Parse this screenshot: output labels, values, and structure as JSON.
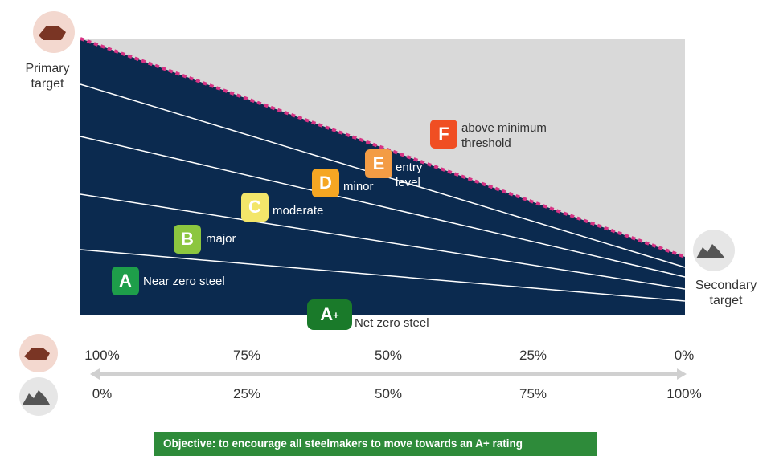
{
  "labels": {
    "primary": "Primary target",
    "secondary": "Secondary target"
  },
  "grades": [
    {
      "letter": "A",
      "label": "Near zero steel"
    },
    {
      "letter": "B",
      "label": "major"
    },
    {
      "letter": "C",
      "label": "moderate"
    },
    {
      "letter": "D",
      "label": "minor"
    },
    {
      "letter": "E",
      "label": "entry level"
    },
    {
      "letter": "F",
      "label": "above minimum threshold"
    }
  ],
  "top_grade": {
    "letter": "A",
    "sup": "+",
    "label": "Net zero steel"
  },
  "scale": {
    "primary": [
      "100%",
      "75%",
      "50%",
      "25%",
      "0%"
    ],
    "secondary": [
      "0%",
      "25%",
      "50%",
      "75%",
      "100%"
    ]
  },
  "objective": "Objective: to encourage all steelmakers to move towards an A+ rating"
}
